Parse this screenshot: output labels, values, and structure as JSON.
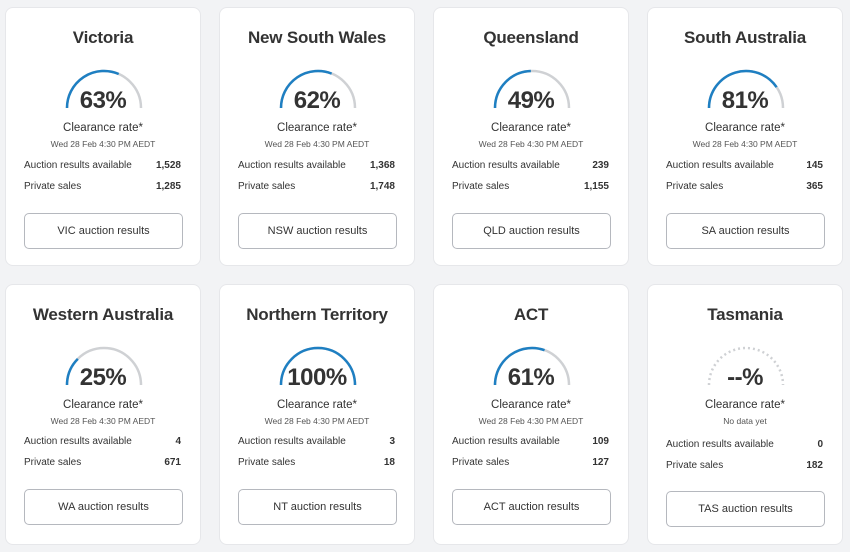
{
  "labels": {
    "clearance": "Clearance rate*",
    "auction": "Auction results available",
    "private": "Private sales"
  },
  "colors": {
    "accent": "#1e7fc2",
    "track": "#cfd1d4"
  },
  "cards": [
    {
      "title": "Victoria",
      "pct_text": "63%",
      "rate": 0.63,
      "date": "Wed 28 Feb 4:30 PM AEDT",
      "auction": "1,528",
      "private": "1,285",
      "button": "VIC auction results"
    },
    {
      "title": "New South Wales",
      "pct_text": "62%",
      "rate": 0.62,
      "date": "Wed 28 Feb 4:30 PM AEDT",
      "auction": "1,368",
      "private": "1,748",
      "button": "NSW auction results"
    },
    {
      "title": "Queensland",
      "pct_text": "49%",
      "rate": 0.49,
      "date": "Wed 28 Feb 4:30 PM AEDT",
      "auction": "239",
      "private": "1,155",
      "button": "QLD auction results"
    },
    {
      "title": "South Australia",
      "pct_text": "81%",
      "rate": 0.81,
      "date": "Wed 28 Feb 4:30 PM AEDT",
      "auction": "145",
      "private": "365",
      "button": "SA auction results"
    },
    {
      "title": "Western Australia",
      "pct_text": "25%",
      "rate": 0.25,
      "date": "Wed 28 Feb 4:30 PM AEDT",
      "auction": "4",
      "private": "671",
      "button": "WA auction results"
    },
    {
      "title": "Northern Territory",
      "pct_text": "100%",
      "rate": 1.0,
      "date": "Wed 28 Feb 4:30 PM AEDT",
      "auction": "3",
      "private": "18",
      "button": "NT auction results"
    },
    {
      "title": "ACT",
      "pct_text": "61%",
      "rate": 0.61,
      "date": "Wed 28 Feb 4:30 PM AEDT",
      "auction": "109",
      "private": "127",
      "button": "ACT auction results"
    },
    {
      "title": "Tasmania",
      "pct_text": "--%",
      "rate": null,
      "date": "No data yet",
      "auction": "0",
      "private": "182",
      "button": "TAS auction results"
    }
  ]
}
